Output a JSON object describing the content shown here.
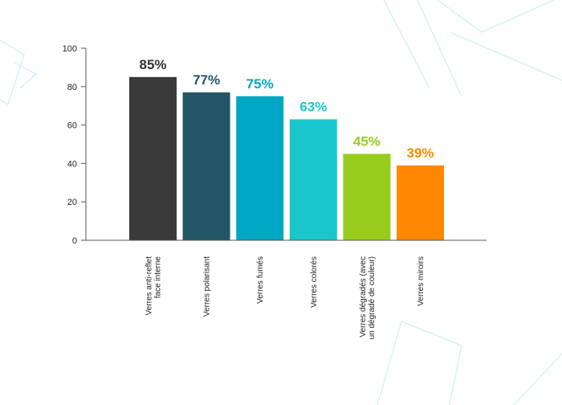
{
  "chart_data": {
    "type": "bar",
    "categories": [
      [
        "Verres anti-reflet",
        "face interne"
      ],
      [
        "Verres polarisant"
      ],
      [
        "Verres fumés"
      ],
      [
        "Verres colorés"
      ],
      [
        "Verres dégradés (avec",
        "un dégradé de couleur)"
      ],
      [
        "Verres miroirs"
      ]
    ],
    "values": [
      85,
      77,
      75,
      63,
      45,
      39
    ],
    "value_labels": [
      "85%",
      "77%",
      "75%",
      "63%",
      "45%",
      "39%"
    ],
    "colors": [
      "#3a3a3a",
      "#225566",
      "#00a7c4",
      "#19c6cc",
      "#97cc1c",
      "#ff8800"
    ],
    "label_colors": [
      "#333333",
      "#225566",
      "#00a7c4",
      "#19c6cc",
      "#97cc1c",
      "#ff8800"
    ],
    "y_ticks": [
      0,
      20,
      40,
      60,
      80,
      100
    ],
    "ylim": [
      0,
      100
    ],
    "grid": false,
    "title": "",
    "xlabel": "",
    "ylabel": ""
  }
}
